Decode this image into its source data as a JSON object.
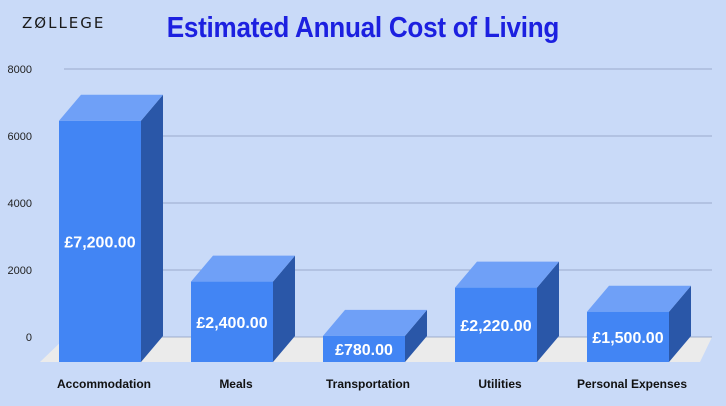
{
  "branding": {
    "logo_text": "ZØLLEGE"
  },
  "chart_data": {
    "type": "bar",
    "style": "3d",
    "title": "Estimated Annual Cost of Living",
    "xlabel": "",
    "ylabel": "",
    "ylim": [
      0,
      8000
    ],
    "yticks": [
      0,
      2000,
      4000,
      6000,
      8000
    ],
    "grid": true,
    "categories": [
      "Accommodation",
      "Meals",
      "Transportation",
      "Utilities",
      "Personal Expenses"
    ],
    "values": [
      7200,
      2400,
      780,
      2220,
      1500
    ],
    "data_labels": [
      "£7,200.00",
      "£2,400.00",
      "£780.00",
      "£2,220.00",
      "£1,500.00"
    ],
    "colors": {
      "front": "#4285f4",
      "top": "#6fa0f7",
      "side": "#2a57a8",
      "floor": "#ebebeb",
      "grid": "#8a9bbd"
    }
  }
}
